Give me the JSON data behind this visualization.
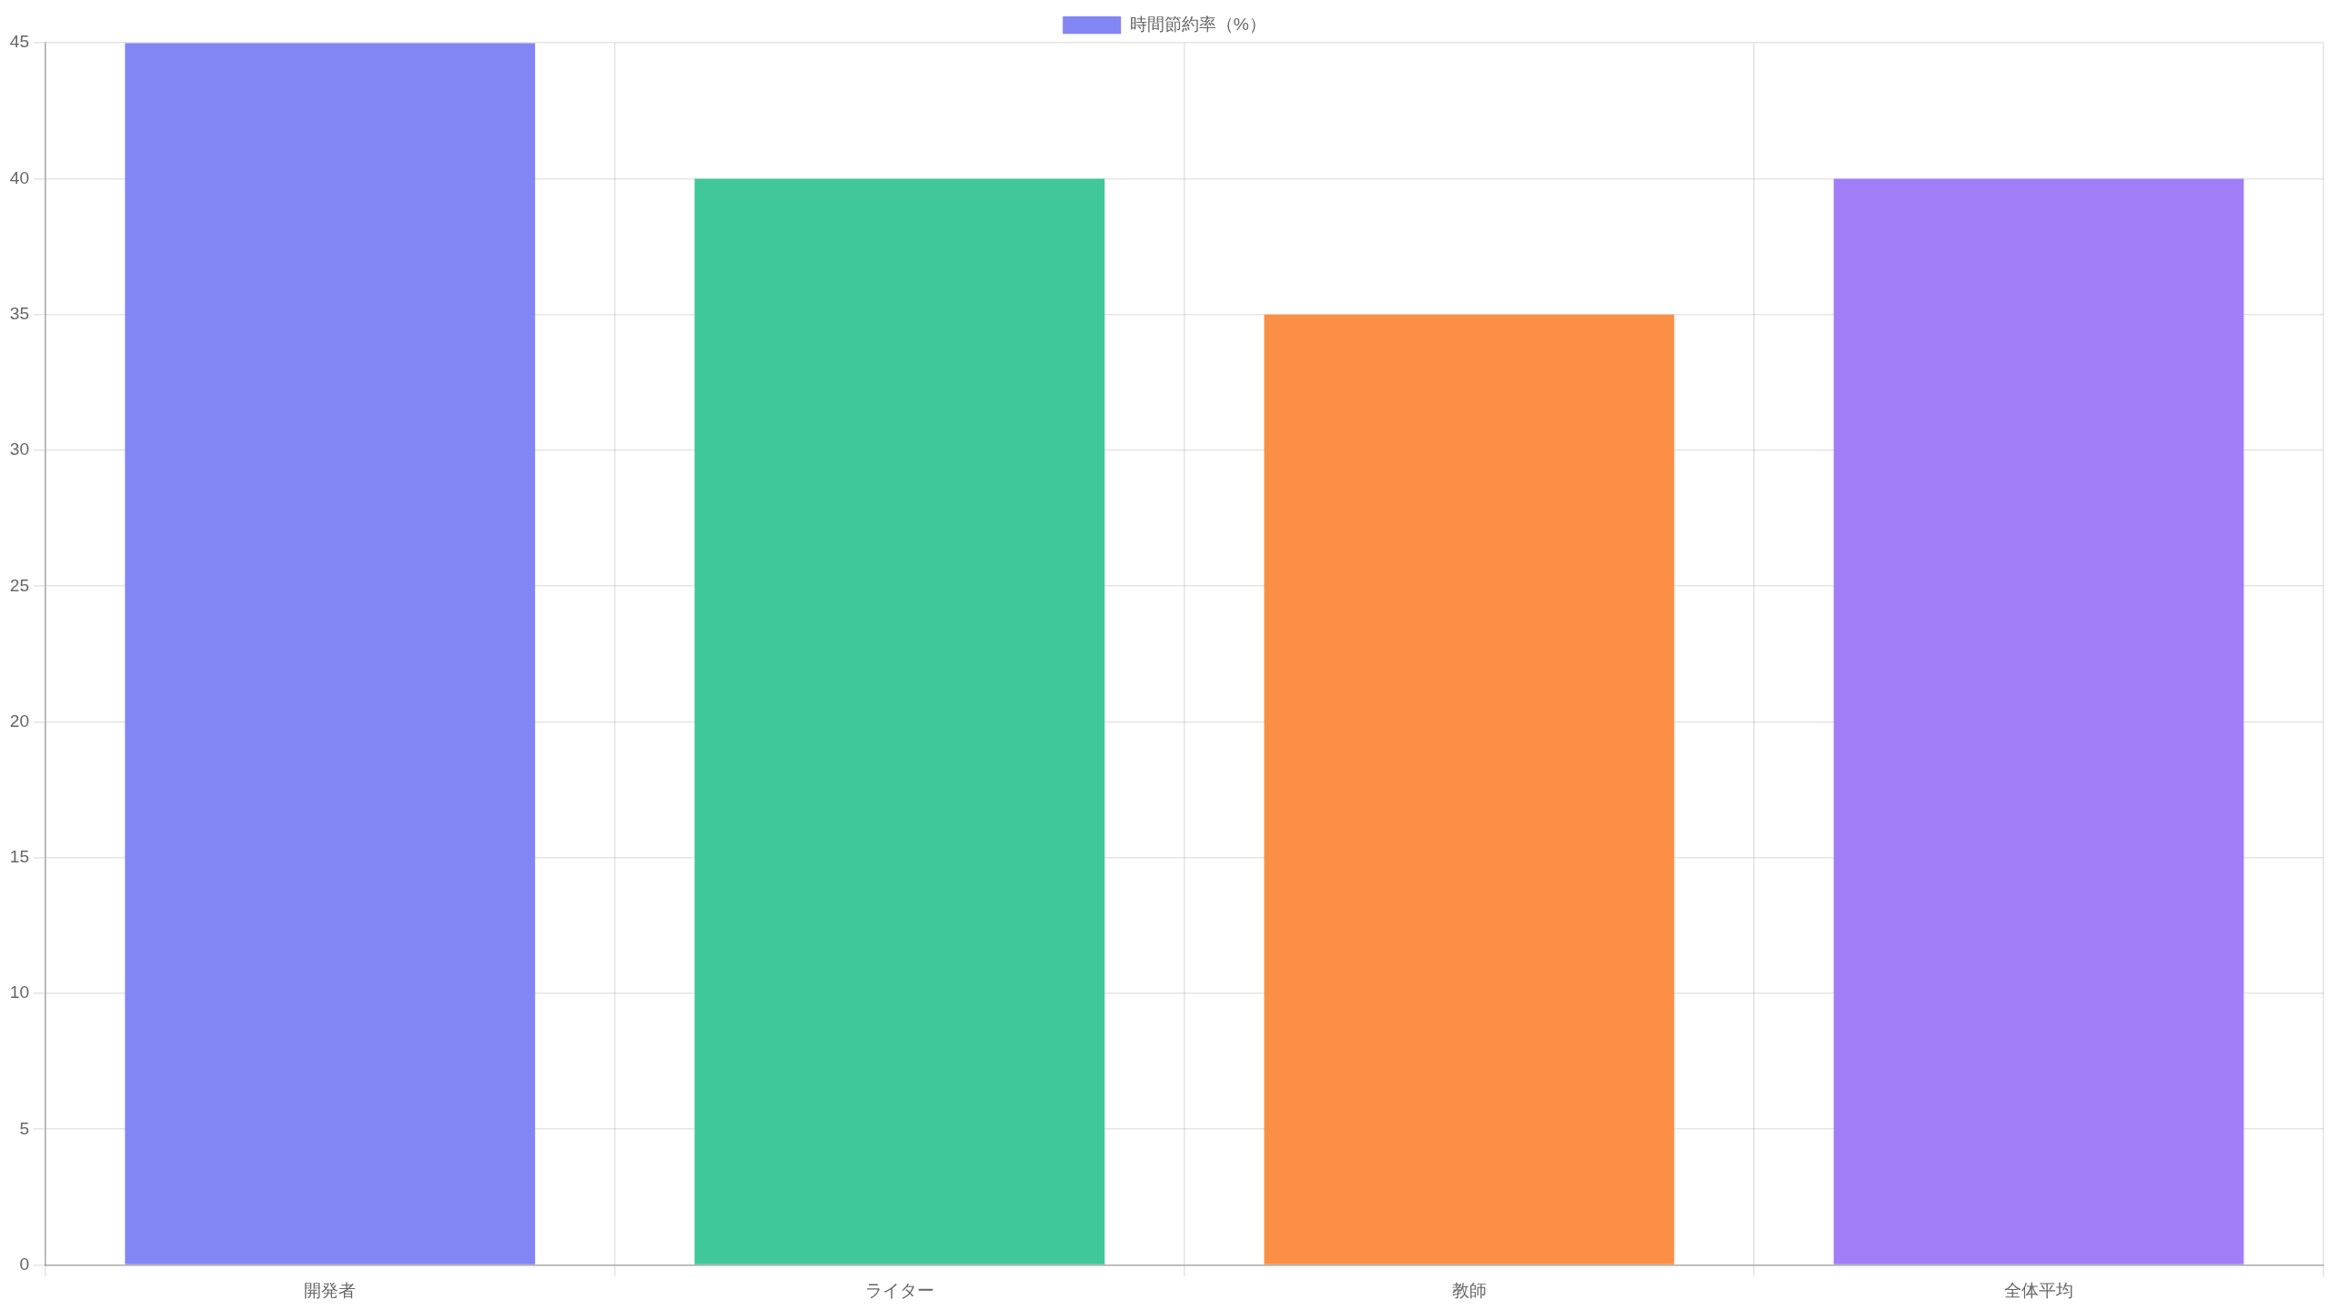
{
  "chart_data": {
    "type": "bar",
    "categories": [
      "開発者",
      "ライター",
      "教師",
      "全体平均"
    ],
    "series": [
      {
        "name": "時間節約率（%）",
        "colors": [
          "#8285f4",
          "#40c79a",
          "#fa8f45",
          "#a27df8"
        ],
        "values": [
          45,
          40,
          35,
          40
        ]
      }
    ],
    "ylim": [
      0,
      45
    ],
    "yticks": [
      0,
      5,
      10,
      15,
      20,
      25,
      30,
      35,
      40,
      45
    ],
    "grid": true,
    "legend": "top"
  }
}
